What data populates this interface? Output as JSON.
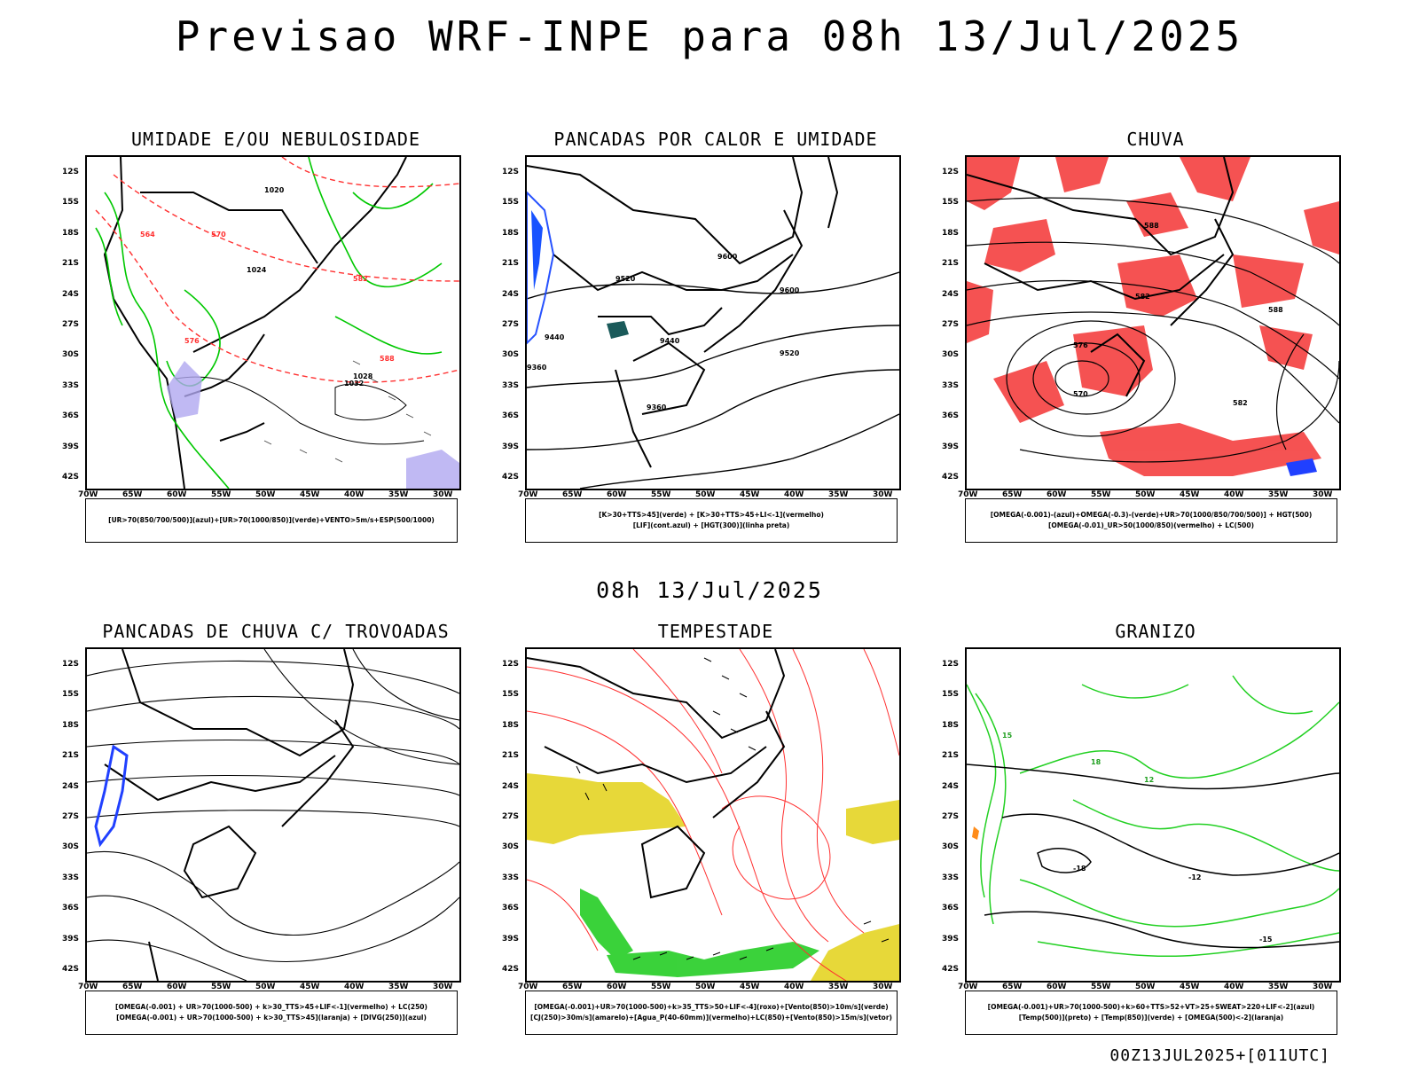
{
  "title": "Previsao WRF-INPE  para 08h 13/Jul/2025",
  "mid_title": "08h 13/Jul/2025",
  "footer": "00Z13JUL2025+[011UTC]",
  "axes": {
    "y_ticks": [
      "12S",
      "15S",
      "18S",
      "21S",
      "24S",
      "27S",
      "30S",
      "33S",
      "36S",
      "39S",
      "42S"
    ],
    "x_ticks": [
      "70W",
      "65W",
      "60W",
      "55W",
      "50W",
      "45W",
      "40W",
      "35W",
      "30W"
    ]
  },
  "panels": [
    {
      "title": "UMIDADE E/OU NEBULOSIDADE",
      "legend": [
        "[UR>70(850/700/500)](azul)+[UR>70(1000/850)](verde)+VENTO>5m/s+ESP(500/1000)"
      ],
      "contour_labels": [
        "1020",
        "1024",
        "1028",
        "1032",
        "564",
        "570",
        "576",
        "582",
        "588"
      ]
    },
    {
      "title": "PANCADAS POR CALOR E UMIDADE",
      "legend": [
        "[K>30+TTS>45](verde) + [K>30+TTS>45+LI<-1](vermelho)",
        "[LIF](cont.azul) + [HGT(300)](linha preta)"
      ],
      "contour_labels": [
        "9600",
        "9520",
        "9440",
        "9360",
        "9600",
        "9520",
        "9440",
        "9360"
      ]
    },
    {
      "title": "CHUVA",
      "legend": [
        "[OMEGA(-0.001)-(azul)+OMEGA(-0.3)-(verde)+UR>70(1000/850/700/500)] + HGT(500)",
        "[OMEGA(-0.01)_UR>50(1000/850)(vermelho) + LC(500)"
      ],
      "contour_labels": [
        "588",
        "582",
        "576",
        "570",
        "582",
        "588"
      ]
    },
    {
      "title": "PANCADAS DE CHUVA C/ TROVOADAS",
      "legend": [
        "[OMEGA(-0.001) + UR>70(1000-500) + k>30_TTS>45+LIF<-1](vermelho) + LC(250)",
        "[OMEGA(-0.001) + UR>70(1000-500) + k>30_TTS>45](laranja) + [DIVG(250)](azul)"
      ],
      "contour_labels": []
    },
    {
      "title": "TEMPESTADE",
      "legend": [
        "[OMEGA(-0.001)+UR>70(1000-500)+k>35_TTS>50+LIF<-4](roxo)+[Vento(850)>10m/s](verde)",
        "[CJ(250)>30m/s](amarelo)+[Agua_P(40-60mm)](vermelho)+LC(850)+[Vento(850)>15m/s](vetor)"
      ],
      "contour_labels": []
    },
    {
      "title": "GRANIZO",
      "legend": [
        "[OMEGA(-0.001)+UR>70(1000-500)+k>60+TTS>52+VT>25+SWEAT>220+LIF<-2](azul)",
        "[Temp(500)](preto) + [Temp(850)](verde) + [OMEGA(500)<-2](laranja)"
      ],
      "contour_labels": [
        "-12",
        "-15",
        "-18",
        "12",
        "15",
        "18"
      ]
    }
  ]
}
